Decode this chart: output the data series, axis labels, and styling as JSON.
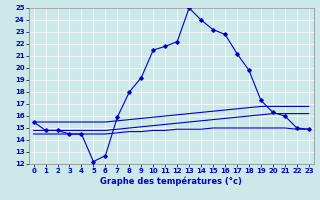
{
  "hours": [
    0,
    1,
    2,
    3,
    4,
    5,
    6,
    7,
    8,
    9,
    10,
    11,
    12,
    13,
    14,
    15,
    16,
    17,
    18,
    19,
    20,
    21,
    22,
    23
  ],
  "temp_main": [
    15.5,
    14.8,
    14.8,
    14.5,
    14.5,
    12.2,
    12.7,
    15.9,
    18.0,
    19.2,
    21.5,
    21.8,
    22.2,
    25.0,
    24.0,
    23.2,
    22.8,
    21.2,
    19.8,
    17.3,
    16.3,
    16.0,
    15.0,
    14.9
  ],
  "line_max": [
    15.5,
    15.5,
    15.5,
    15.5,
    15.5,
    15.5,
    15.5,
    15.6,
    15.7,
    15.8,
    15.9,
    16.0,
    16.1,
    16.2,
    16.3,
    16.4,
    16.5,
    16.6,
    16.7,
    16.8,
    16.8,
    16.8,
    16.8,
    16.8
  ],
  "line_avg": [
    14.8,
    14.8,
    14.8,
    14.8,
    14.8,
    14.8,
    14.8,
    14.9,
    15.0,
    15.1,
    15.2,
    15.3,
    15.4,
    15.5,
    15.6,
    15.7,
    15.8,
    15.9,
    16.0,
    16.1,
    16.2,
    16.2,
    16.2,
    16.2
  ],
  "line_min": [
    14.5,
    14.5,
    14.5,
    14.5,
    14.5,
    14.5,
    14.5,
    14.6,
    14.7,
    14.7,
    14.8,
    14.8,
    14.9,
    14.9,
    14.9,
    15.0,
    15.0,
    15.0,
    15.0,
    15.0,
    15.0,
    15.0,
    14.9,
    14.9
  ],
  "ylim_min": 12,
  "ylim_max": 25,
  "yticks": [
    12,
    13,
    14,
    15,
    16,
    17,
    18,
    19,
    20,
    21,
    22,
    23,
    24,
    25
  ],
  "xlim_min": 0,
  "xlim_max": 23,
  "xticks": [
    0,
    1,
    2,
    3,
    4,
    5,
    6,
    7,
    8,
    9,
    10,
    11,
    12,
    13,
    14,
    15,
    16,
    17,
    18,
    19,
    20,
    21,
    22,
    23
  ],
  "xlabel": "Graphe des températures (°c)",
  "line_color": "#0000cc",
  "bg_color": "#cce8e8",
  "grid_color": "#ffffff",
  "marker": "D",
  "marker_size": 1.8,
  "linewidth": 0.8,
  "tick_fontsize": 5.0,
  "xlabel_fontsize": 6.0
}
